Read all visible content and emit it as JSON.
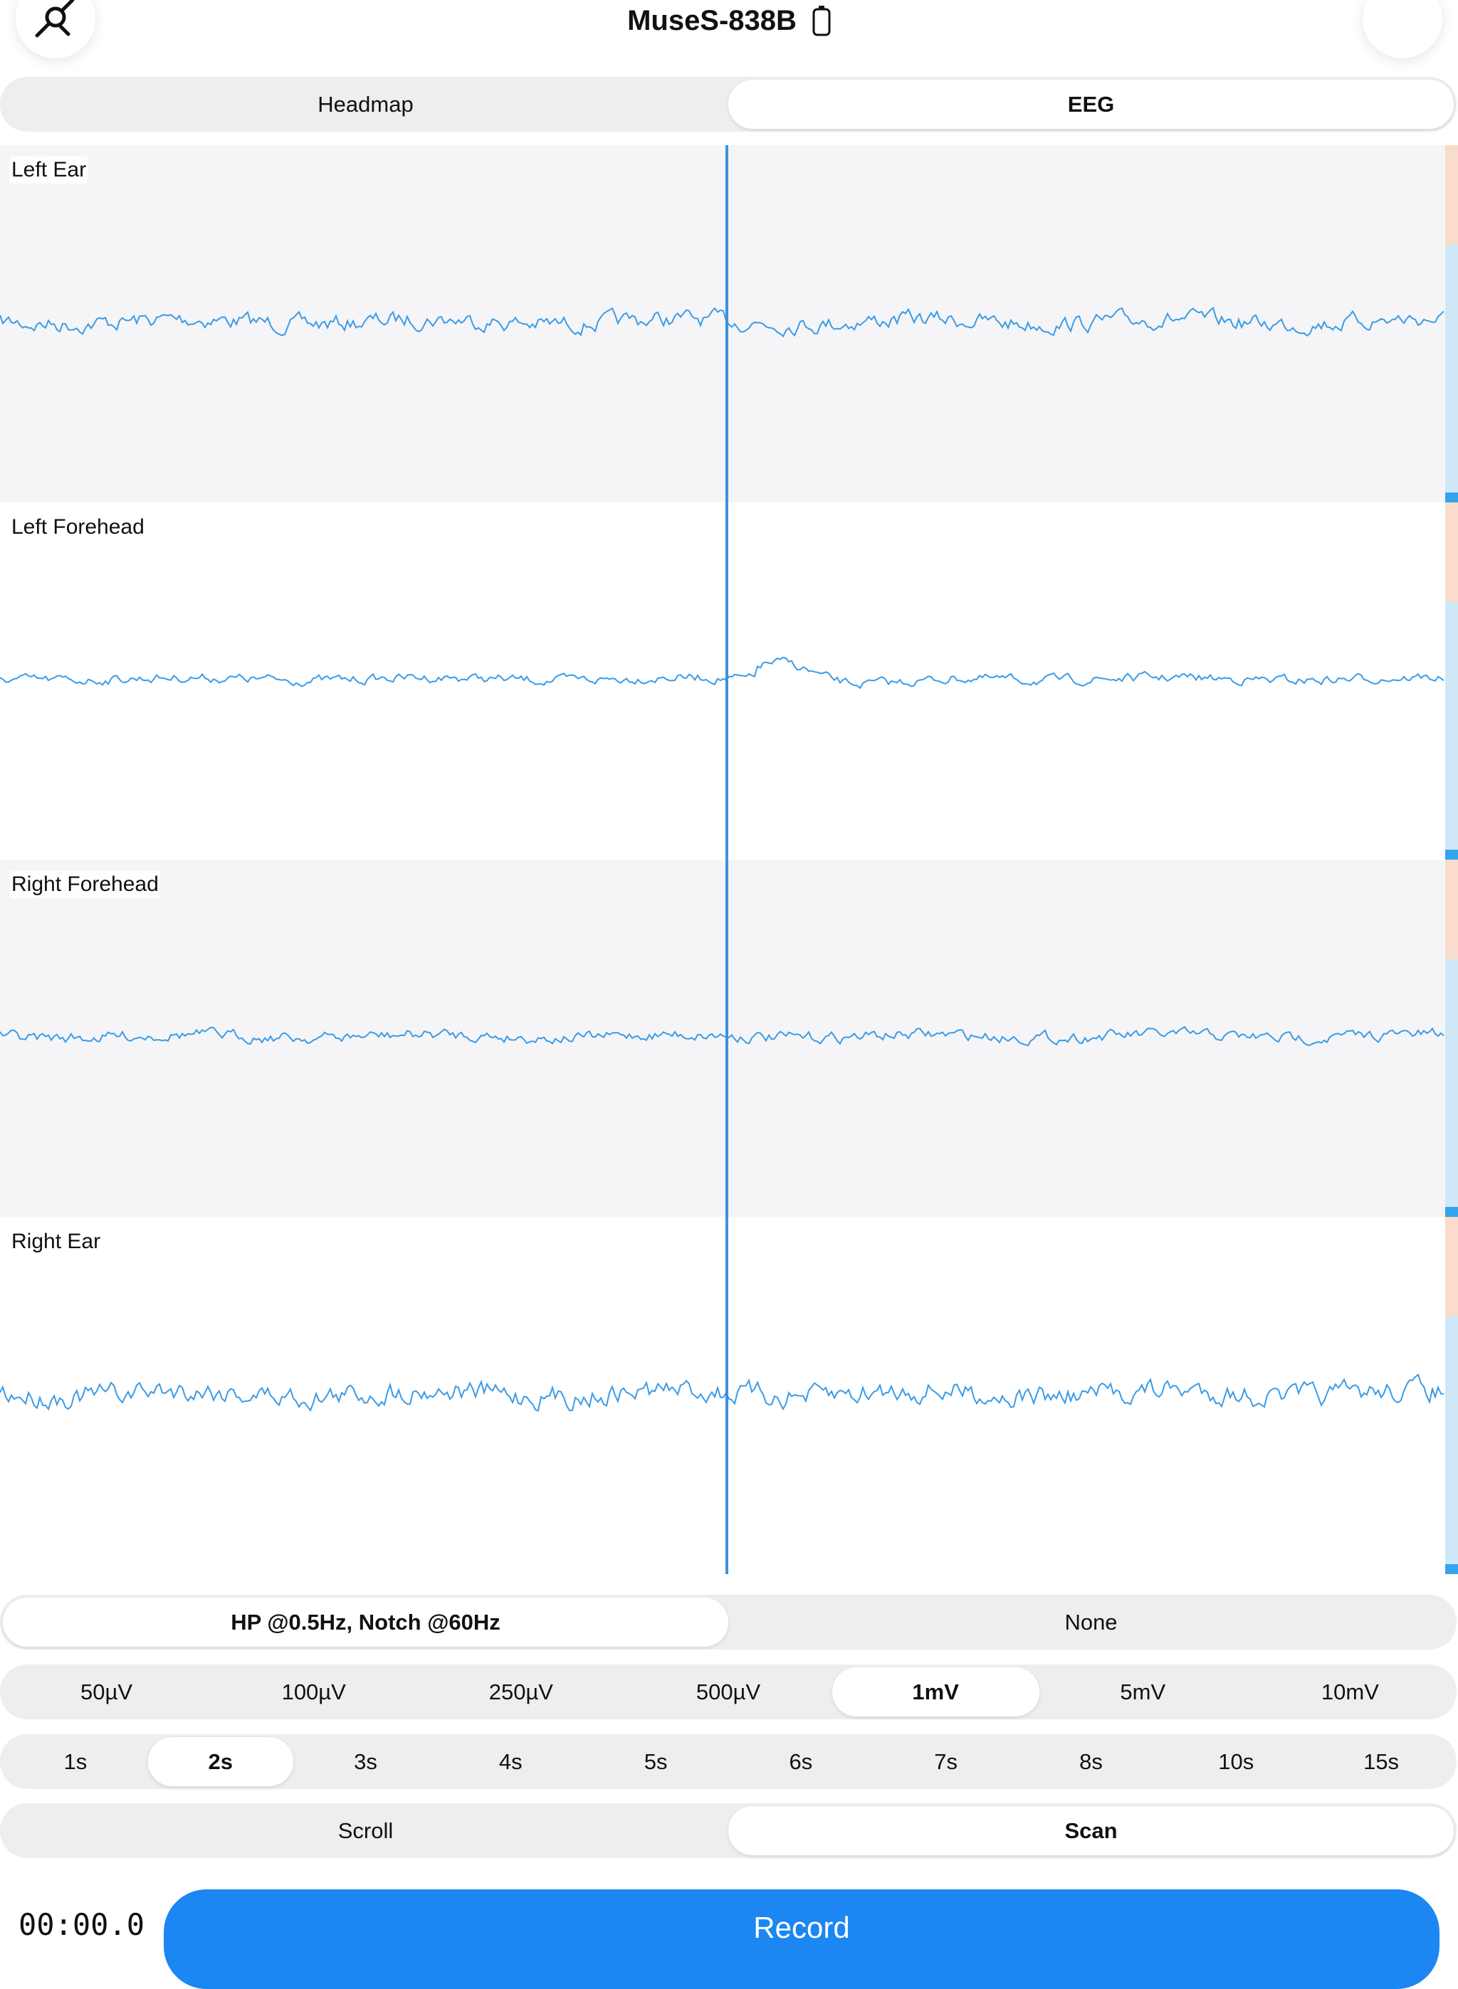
{
  "header": {
    "title": "MuseS-838B"
  },
  "view_tabs": {
    "options": [
      "Headmap",
      "EEG"
    ],
    "selected": 1
  },
  "channels": [
    "Left Ear",
    "Left Forehead",
    "Right Forehead",
    "Right Ear"
  ],
  "filter": {
    "options": [
      "HP @0.5Hz, Notch @60Hz",
      "None"
    ],
    "selected": 0
  },
  "scale": {
    "options": [
      "50µV",
      "100µV",
      "250µV",
      "500µV",
      "1mV",
      "5mV",
      "10mV"
    ],
    "selected": 4
  },
  "window": {
    "options": [
      "1s",
      "2s",
      "3s",
      "4s",
      "5s",
      "6s",
      "7s",
      "8s",
      "10s",
      "15s"
    ],
    "selected": 1
  },
  "mode": {
    "options": [
      "Scroll",
      "Scan"
    ],
    "selected": 1
  },
  "timer": "00:00.0",
  "record_button": "Record"
}
